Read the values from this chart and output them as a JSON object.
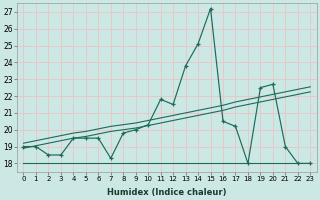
{
  "xlabel": "Humidex (Indice chaleur)",
  "background_color": "#cce8e4",
  "grid_color": "#e8c8c8",
  "line_color": "#1a6b5a",
  "x_ticks": [
    0,
    1,
    2,
    3,
    4,
    5,
    6,
    7,
    8,
    9,
    10,
    11,
    12,
    13,
    14,
    15,
    16,
    17,
    18,
    19,
    20,
    21,
    22,
    23
  ],
  "y_ticks": [
    18,
    19,
    20,
    21,
    22,
    23,
    24,
    25,
    26,
    27
  ],
  "ylim": [
    17.5,
    27.5
  ],
  "xlim": [
    -0.5,
    23.5
  ],
  "series_main": [
    19.0,
    19.0,
    18.5,
    18.5,
    19.5,
    19.5,
    19.5,
    18.3,
    19.8,
    20.0,
    20.3,
    21.8,
    21.5,
    23.8,
    25.1,
    27.2,
    20.5,
    20.2,
    18.0,
    22.5,
    22.7,
    19.0,
    18.0,
    18.0
  ],
  "series_trend1": [
    18.9,
    19.05,
    19.2,
    19.35,
    19.5,
    19.6,
    19.75,
    19.9,
    20.0,
    20.1,
    20.25,
    20.4,
    20.55,
    20.7,
    20.85,
    21.0,
    21.15,
    21.35,
    21.5,
    21.65,
    21.8,
    21.95,
    22.1,
    22.25
  ],
  "series_trend2": [
    19.2,
    19.35,
    19.5,
    19.65,
    19.8,
    19.9,
    20.05,
    20.2,
    20.3,
    20.4,
    20.55,
    20.7,
    20.85,
    21.0,
    21.15,
    21.3,
    21.45,
    21.65,
    21.8,
    21.95,
    22.1,
    22.25,
    22.4,
    22.55
  ],
  "series_flat": [
    18.0,
    18.0,
    18.0,
    18.0,
    18.0,
    18.0,
    18.0,
    18.0,
    18.0,
    18.0,
    18.0,
    18.0,
    18.0,
    18.0,
    18.0,
    18.0,
    18.0,
    18.0,
    18.0,
    18.0,
    18.0,
    18.0,
    18.0,
    18.0
  ]
}
